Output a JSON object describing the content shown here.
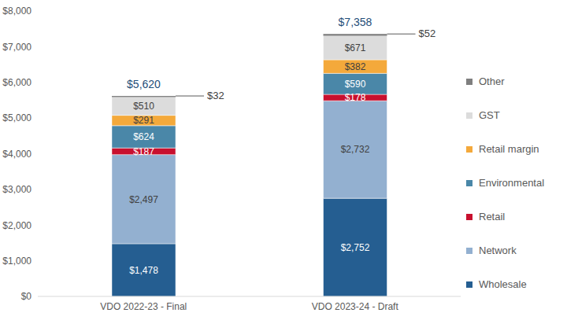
{
  "chart_data": {
    "type": "bar",
    "stacked": true,
    "data_labels": true,
    "legend": "right",
    "grid": false,
    "categories": [
      "VDO 2022-23 - Final",
      "VDO 2023-24 - Draft"
    ],
    "ylim": [
      0,
      8000
    ],
    "yticks": [
      {
        "value": 0,
        "label": "$0"
      },
      {
        "value": 1000,
        "label": "$1,000"
      },
      {
        "value": 2000,
        "label": "$2,000"
      },
      {
        "value": 3000,
        "label": "$3,000"
      },
      {
        "value": 4000,
        "label": "$4,000"
      },
      {
        "value": 5000,
        "label": "$5,000"
      },
      {
        "value": 6000,
        "label": "$6,000"
      },
      {
        "value": 7000,
        "label": "$7,000"
      },
      {
        "value": 8000,
        "label": "$8,000"
      }
    ],
    "totals": [
      5620,
      7358
    ],
    "total_labels": [
      "$5,620",
      "$7,358"
    ],
    "series": [
      {
        "name": "Wholesale",
        "color": "#255e91",
        "values": [
          1478,
          2752
        ],
        "value_labels": [
          "$1,478",
          "$2,752"
        ]
      },
      {
        "name": "Network",
        "color": "#93b0d0",
        "values": [
          2497,
          2732
        ],
        "value_labels": [
          "$2,497",
          "$2,732"
        ]
      },
      {
        "name": "Retail",
        "color": "#c8102e",
        "values": [
          187,
          178
        ],
        "value_labels": [
          "$187",
          "$178"
        ]
      },
      {
        "name": "Environmental",
        "color": "#4a87a8",
        "values": [
          624,
          590
        ],
        "value_labels": [
          "$624",
          "$590"
        ]
      },
      {
        "name": "Retail margin",
        "color": "#f4a93b",
        "values": [
          291,
          382
        ],
        "value_labels": [
          "$291",
          "$382"
        ]
      },
      {
        "name": "GST",
        "color": "#dcdcdc",
        "values": [
          510,
          671
        ],
        "value_labels": [
          "$510",
          "$671"
        ]
      },
      {
        "name": "Other",
        "color": "#7f7f7f",
        "values": [
          32,
          52
        ],
        "value_labels": [
          "$32",
          "$52"
        ]
      }
    ]
  }
}
